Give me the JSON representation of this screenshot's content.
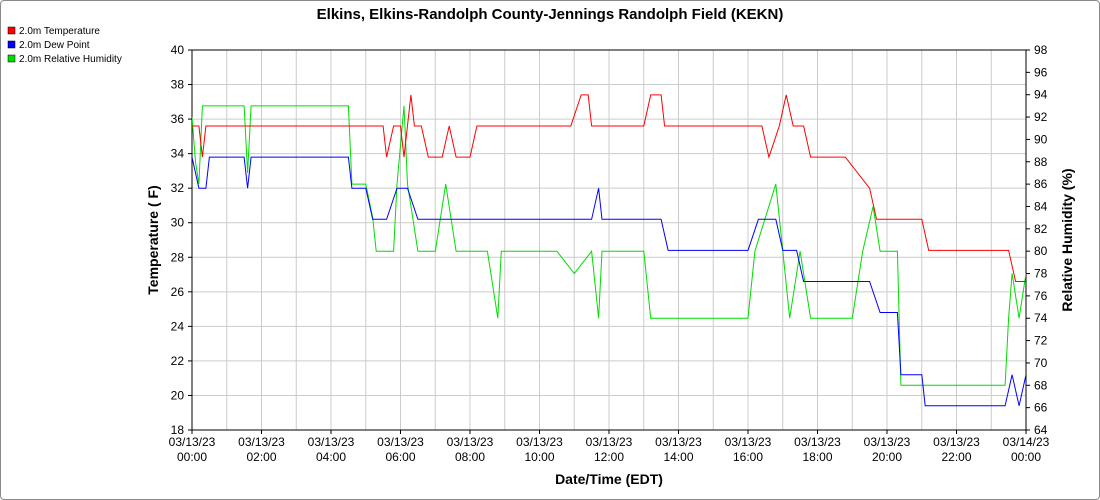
{
  "chart_data": {
    "type": "line",
    "title": "Elkins, Elkins-Randolph County-Jennings Randolph Field (KEKN)",
    "xlabel": "Date/Time (EDT)",
    "ylabel_left": "Temperature ( F)",
    "ylabel_right": "Relative Humidity (%)",
    "ylim_left": [
      18,
      40
    ],
    "ylim_right": [
      64,
      98
    ],
    "yticks_left": [
      "18",
      "20",
      "22",
      "24",
      "26",
      "28",
      "30",
      "32",
      "34",
      "36",
      "38",
      "40"
    ],
    "yticks_right": [
      "64",
      "66",
      "68",
      "70",
      "72",
      "74",
      "76",
      "78",
      "80",
      "82",
      "84",
      "86",
      "88",
      "90",
      "92",
      "94",
      "96",
      "98"
    ],
    "xlim_hours": [
      0,
      24
    ],
    "xticks": [
      {
        "date": "03/13/23",
        "time": "00:00"
      },
      {
        "date": "03/13/23",
        "time": "02:00"
      },
      {
        "date": "03/13/23",
        "time": "04:00"
      },
      {
        "date": "03/13/23",
        "time": "06:00"
      },
      {
        "date": "03/13/23",
        "time": "08:00"
      },
      {
        "date": "03/13/23",
        "time": "10:00"
      },
      {
        "date": "03/13/23",
        "time": "12:00"
      },
      {
        "date": "03/13/23",
        "time": "14:00"
      },
      {
        "date": "03/13/23",
        "time": "16:00"
      },
      {
        "date": "03/13/23",
        "time": "18:00"
      },
      {
        "date": "03/13/23",
        "time": "20:00"
      },
      {
        "date": "03/13/23",
        "time": "22:00"
      },
      {
        "date": "03/14/23",
        "time": "00:00"
      }
    ],
    "grid": true,
    "legend_position": "top-left",
    "series": [
      {
        "name": "2.0m Temperature",
        "color": "#ff0000",
        "axis": "left",
        "points": [
          [
            0.0,
            35.6
          ],
          [
            0.2,
            35.6
          ],
          [
            0.3,
            33.8
          ],
          [
            0.4,
            35.6
          ],
          [
            1.0,
            35.6
          ],
          [
            1.5,
            35.6
          ],
          [
            2.0,
            35.6
          ],
          [
            2.5,
            35.6
          ],
          [
            3.0,
            35.6
          ],
          [
            3.5,
            35.6
          ],
          [
            4.0,
            35.6
          ],
          [
            4.5,
            35.6
          ],
          [
            4.8,
            35.6
          ],
          [
            5.2,
            35.6
          ],
          [
            5.5,
            35.6
          ],
          [
            5.6,
            33.8
          ],
          [
            5.8,
            35.6
          ],
          [
            6.0,
            35.6
          ],
          [
            6.1,
            33.8
          ],
          [
            6.3,
            37.4
          ],
          [
            6.4,
            35.6
          ],
          [
            6.6,
            35.6
          ],
          [
            6.8,
            33.8
          ],
          [
            7.2,
            33.8
          ],
          [
            7.4,
            35.6
          ],
          [
            7.6,
            33.8
          ],
          [
            8.0,
            33.8
          ],
          [
            8.2,
            35.6
          ],
          [
            8.4,
            35.6
          ],
          [
            9.0,
            35.6
          ],
          [
            10.0,
            35.6
          ],
          [
            10.6,
            35.6
          ],
          [
            10.9,
            35.6
          ],
          [
            11.2,
            37.4
          ],
          [
            11.4,
            37.4
          ],
          [
            11.5,
            35.6
          ],
          [
            11.8,
            35.6
          ],
          [
            12.2,
            35.6
          ],
          [
            12.6,
            35.6
          ],
          [
            13.0,
            35.6
          ],
          [
            13.2,
            37.4
          ],
          [
            13.5,
            37.4
          ],
          [
            13.6,
            35.6
          ],
          [
            14.0,
            35.6
          ],
          [
            15.0,
            35.6
          ],
          [
            16.0,
            35.6
          ],
          [
            16.4,
            35.6
          ],
          [
            16.6,
            33.8
          ],
          [
            16.9,
            35.6
          ],
          [
            17.1,
            37.4
          ],
          [
            17.3,
            35.6
          ],
          [
            17.6,
            35.6
          ],
          [
            17.8,
            33.8
          ],
          [
            18.3,
            33.8
          ],
          [
            18.5,
            33.8
          ],
          [
            18.8,
            33.8
          ],
          [
            19.5,
            32.0
          ],
          [
            19.7,
            30.2
          ],
          [
            20.0,
            30.2
          ],
          [
            20.5,
            30.2
          ],
          [
            21.0,
            30.2
          ],
          [
            21.2,
            28.4
          ],
          [
            22.0,
            28.4
          ],
          [
            23.0,
            28.4
          ],
          [
            23.5,
            28.4
          ],
          [
            23.7,
            26.6
          ],
          [
            24.0,
            26.6
          ]
        ]
      },
      {
        "name": "2.0m Dew Point",
        "color": "#0000ff",
        "axis": "left",
        "points": [
          [
            0.0,
            33.8
          ],
          [
            0.2,
            32.0
          ],
          [
            0.4,
            32.0
          ],
          [
            0.5,
            33.8
          ],
          [
            1.0,
            33.8
          ],
          [
            1.5,
            33.8
          ],
          [
            1.6,
            32.0
          ],
          [
            1.7,
            33.8
          ],
          [
            2.0,
            33.8
          ],
          [
            3.0,
            33.8
          ],
          [
            4.0,
            33.8
          ],
          [
            4.5,
            33.8
          ],
          [
            4.6,
            32.0
          ],
          [
            5.0,
            32.0
          ],
          [
            5.2,
            30.2
          ],
          [
            5.6,
            30.2
          ],
          [
            5.9,
            32.0
          ],
          [
            6.2,
            32.0
          ],
          [
            6.5,
            30.2
          ],
          [
            7.0,
            30.2
          ],
          [
            8.0,
            30.2
          ],
          [
            8.5,
            30.2
          ],
          [
            9.0,
            30.2
          ],
          [
            9.5,
            30.2
          ],
          [
            10.0,
            30.2
          ],
          [
            10.5,
            30.2
          ],
          [
            11.0,
            30.2
          ],
          [
            11.5,
            30.2
          ],
          [
            11.7,
            32.0
          ],
          [
            11.8,
            30.2
          ],
          [
            12.0,
            30.2
          ],
          [
            12.5,
            30.2
          ],
          [
            13.0,
            30.2
          ],
          [
            13.5,
            30.2
          ],
          [
            13.7,
            28.4
          ],
          [
            14.0,
            28.4
          ],
          [
            15.0,
            28.4
          ],
          [
            15.5,
            28.4
          ],
          [
            15.8,
            28.4
          ],
          [
            16.0,
            28.4
          ],
          [
            16.3,
            30.2
          ],
          [
            16.8,
            30.2
          ],
          [
            17.0,
            28.4
          ],
          [
            17.4,
            28.4
          ],
          [
            17.6,
            26.6
          ],
          [
            18.0,
            26.6
          ],
          [
            18.4,
            26.6
          ],
          [
            18.8,
            26.6
          ],
          [
            19.2,
            26.6
          ],
          [
            19.5,
            26.6
          ],
          [
            19.8,
            24.8
          ],
          [
            20.0,
            24.8
          ],
          [
            20.3,
            24.8
          ],
          [
            20.4,
            21.2
          ],
          [
            21.0,
            21.2
          ],
          [
            21.1,
            19.4
          ],
          [
            21.5,
            19.4
          ],
          [
            22.0,
            19.4
          ],
          [
            23.0,
            19.4
          ],
          [
            23.4,
            19.4
          ],
          [
            23.6,
            21.2
          ],
          [
            23.8,
            19.4
          ],
          [
            24.0,
            21.2
          ]
        ]
      },
      {
        "name": "2.0m Relative Humidity",
        "color": "#00dd00",
        "axis": "right",
        "points": [
          [
            0.0,
            92.0
          ],
          [
            0.1,
            88.0
          ],
          [
            0.2,
            86.0
          ],
          [
            0.3,
            93.0
          ],
          [
            0.5,
            93.0
          ],
          [
            1.0,
            93.0
          ],
          [
            1.5,
            93.0
          ],
          [
            1.6,
            87.0
          ],
          [
            1.7,
            93.0
          ],
          [
            2.0,
            93.0
          ],
          [
            3.0,
            93.0
          ],
          [
            4.0,
            93.0
          ],
          [
            4.5,
            93.0
          ],
          [
            4.6,
            86.0
          ],
          [
            5.0,
            86.0
          ],
          [
            5.2,
            83.0
          ],
          [
            5.3,
            80.0
          ],
          [
            5.8,
            80.0
          ],
          [
            5.9,
            86.0
          ],
          [
            6.1,
            93.0
          ],
          [
            6.2,
            86.0
          ],
          [
            6.5,
            80.0
          ],
          [
            7.0,
            80.0
          ],
          [
            7.3,
            86.0
          ],
          [
            7.6,
            80.0
          ],
          [
            8.0,
            80.0
          ],
          [
            8.5,
            80.0
          ],
          [
            8.8,
            74.0
          ],
          [
            8.9,
            80.0
          ],
          [
            9.5,
            80.0
          ],
          [
            10.0,
            80.0
          ],
          [
            10.5,
            80.0
          ],
          [
            11.0,
            78.0
          ],
          [
            11.5,
            80.0
          ],
          [
            11.7,
            74.0
          ],
          [
            11.8,
            80.0
          ],
          [
            12.0,
            80.0
          ],
          [
            12.5,
            80.0
          ],
          [
            13.0,
            80.0
          ],
          [
            13.2,
            74.0
          ],
          [
            13.5,
            74.0
          ],
          [
            14.0,
            74.0
          ],
          [
            14.5,
            74.0
          ],
          [
            15.0,
            74.0
          ],
          [
            15.5,
            74.0
          ],
          [
            15.8,
            74.0
          ],
          [
            16.0,
            74.0
          ],
          [
            16.2,
            80.0
          ],
          [
            16.8,
            86.0
          ],
          [
            17.0,
            80.0
          ],
          [
            17.2,
            74.0
          ],
          [
            17.5,
            80.0
          ],
          [
            17.8,
            74.0
          ],
          [
            18.0,
            74.0
          ],
          [
            18.5,
            74.0
          ],
          [
            19.0,
            74.0
          ],
          [
            19.3,
            80.0
          ],
          [
            19.6,
            84.0
          ],
          [
            19.8,
            80.0
          ],
          [
            20.3,
            80.0
          ],
          [
            20.4,
            68.0
          ],
          [
            21.0,
            68.0
          ],
          [
            22.0,
            68.0
          ],
          [
            23.0,
            68.0
          ],
          [
            23.4,
            68.0
          ],
          [
            23.5,
            74.0
          ],
          [
            23.6,
            78.0
          ],
          [
            23.8,
            74.0
          ],
          [
            24.0,
            78.0
          ]
        ]
      }
    ]
  }
}
